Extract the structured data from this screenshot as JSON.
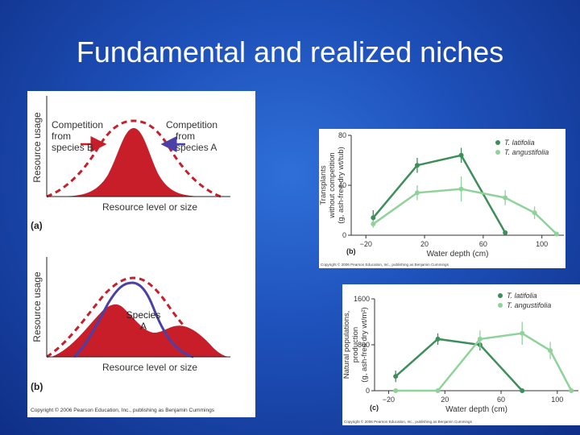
{
  "slide": {
    "title": "Fundamental and realized niches"
  },
  "left_figure": {
    "panel_a": {
      "label": "(a)",
      "ylabel": "Resource usage",
      "xlabel": "Resource level or size",
      "competition_b": [
        "Competition",
        "from",
        "species B"
      ],
      "competition_a": [
        "Competition",
        "from",
        "species A"
      ]
    },
    "panel_b": {
      "label": "(b)",
      "ylabel": "Resource usage",
      "xlabel": "Resource level or size",
      "species_label": [
        "Species",
        "A"
      ]
    },
    "copyright": "Copyright © 2006 Pearson Education, Inc., publishing as Benjamin Cummings"
  },
  "chart_data": [
    {
      "type": "line",
      "panel_label": "(b)",
      "xlabel": "Water depth (cm)",
      "ylabel_lines": [
        "Transplants",
        "without competition",
        "(g, ash-free dry wt/tub)"
      ],
      "xlim": [
        -30,
        115
      ],
      "ylim": [
        0,
        80
      ],
      "xticks": [
        -20,
        20,
        60,
        100
      ],
      "xtick_labels": [
        "−20",
        "20",
        "60",
        "100"
      ],
      "yticks": [
        0,
        40,
        80
      ],
      "ytick_labels": [
        "0",
        "40",
        "80"
      ],
      "legend_position": "top-right",
      "series": [
        {
          "name": "T. latifolia",
          "color": "#3e8e5a",
          "x": [
            -15,
            15,
            45,
            75
          ],
          "y": [
            14,
            56,
            64,
            2
          ],
          "err": [
            6,
            6,
            6,
            0
          ]
        },
        {
          "name": "T. angustifolia",
          "color": "#8fd39a",
          "x": [
            -15,
            15,
            45,
            75,
            95,
            110
          ],
          "y": [
            9,
            34,
            37,
            30,
            18,
            1
          ],
          "err": [
            3,
            6,
            10,
            6,
            5,
            0
          ]
        }
      ],
      "copyright": "Copyright © 2006 Pearson Education, Inc., publishing as Benjamin Cummings"
    },
    {
      "type": "line",
      "panel_label": "(c)",
      "xlabel": "Water depth (cm)",
      "ylabel_lines": [
        "Natural populations,",
        "production",
        "(g, ash-free dry wt/m²)"
      ],
      "xlim": [
        -30,
        115
      ],
      "ylim": [
        0,
        1600
      ],
      "xticks": [
        -20,
        20,
        60,
        100
      ],
      "xtick_labels": [
        "−20",
        "20",
        "60",
        "100"
      ],
      "yticks": [
        0,
        800,
        1600
      ],
      "ytick_labels": [
        "0",
        "800",
        "1600"
      ],
      "legend_position": "top-right",
      "series": [
        {
          "name": "T. latifolia",
          "color": "#3e8e5a",
          "x": [
            -15,
            15,
            45,
            75
          ],
          "y": [
            250,
            900,
            800,
            0
          ],
          "err": [
            100,
            100,
            100,
            0
          ]
        },
        {
          "name": "T. angustifolia",
          "color": "#8fd39a",
          "x": [
            -15,
            15,
            45,
            75,
            95,
            110
          ],
          "y": [
            0,
            0,
            900,
            1000,
            700,
            0
          ],
          "err": [
            0,
            0,
            150,
            200,
            150,
            0
          ]
        }
      ],
      "copyright": "Copyright © 2006 Pearson Education, Inc., publishing as Benjamin Cummings"
    }
  ]
}
